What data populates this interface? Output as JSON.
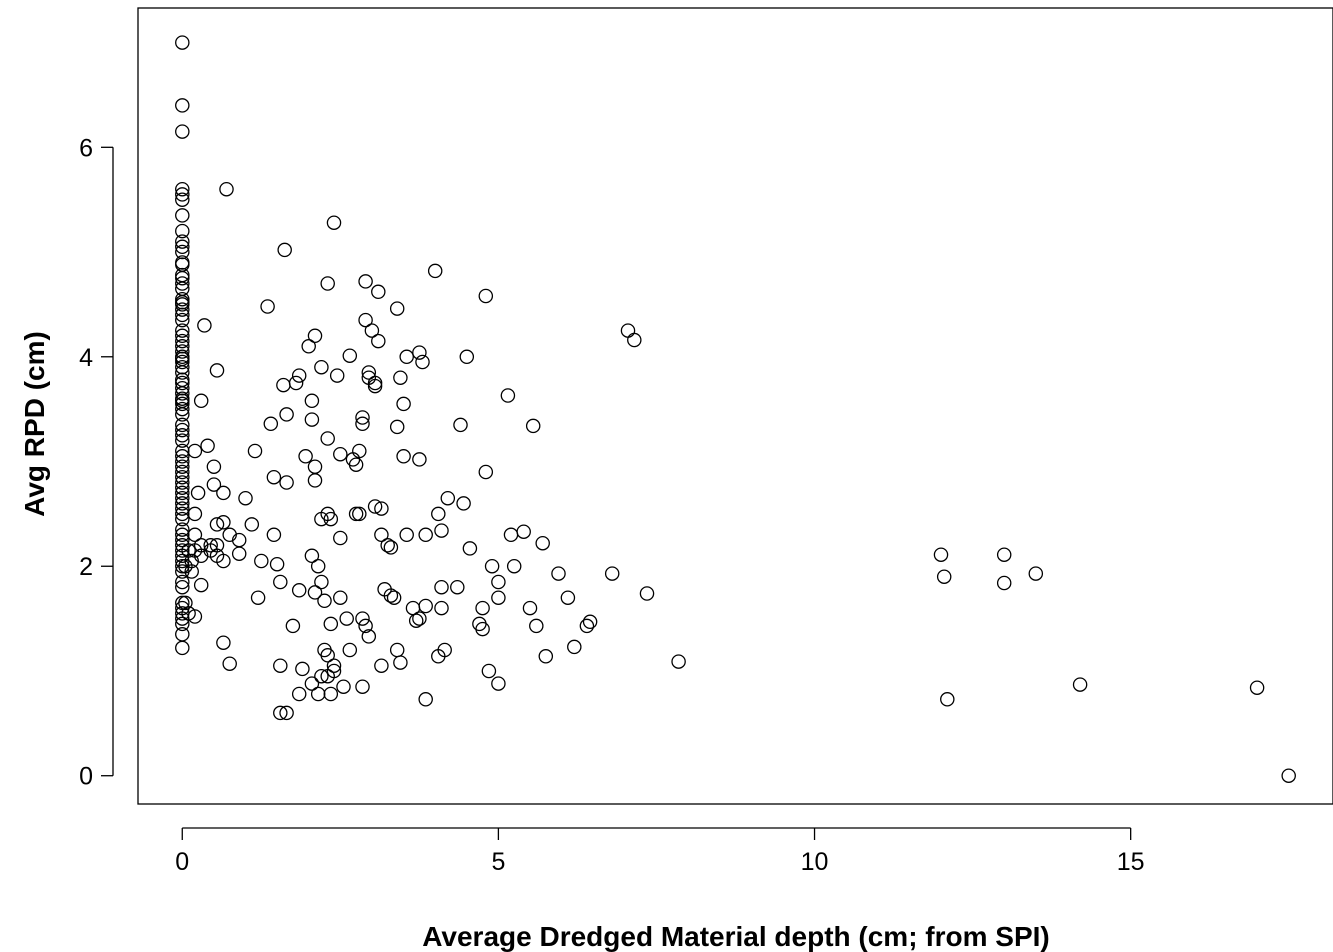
{
  "chart_data": {
    "type": "scatter",
    "title": "",
    "xlabel": "Average Dredged Material depth (cm; from SPI)",
    "ylabel": "Avg RPD (cm)",
    "xlim": [
      -0.7,
      18.2
    ],
    "ylim": [
      -0.27,
      7.33
    ],
    "x_ticks": [
      0,
      5,
      10,
      15
    ],
    "y_ticks": [
      0,
      2,
      4,
      6
    ],
    "x_tick_labels": [
      "0",
      "5",
      "10",
      "15"
    ],
    "y_tick_labels": [
      "0",
      "2",
      "4",
      "6"
    ],
    "grid": false,
    "marker": "open-circle",
    "points": [
      [
        0,
        7.0
      ],
      [
        0,
        6.4
      ],
      [
        0,
        6.15
      ],
      [
        0,
        5.6
      ],
      [
        0,
        5.55
      ],
      [
        0,
        5.5
      ],
      [
        0,
        5.35
      ],
      [
        0,
        5.2
      ],
      [
        0,
        5.1
      ],
      [
        0,
        5.05
      ],
      [
        0,
        5.0
      ],
      [
        0,
        4.9
      ],
      [
        0,
        4.88
      ],
      [
        0,
        4.78
      ],
      [
        0,
        4.75
      ],
      [
        0,
        4.7
      ],
      [
        0,
        4.65
      ],
      [
        0,
        4.55
      ],
      [
        0,
        4.52
      ],
      [
        0,
        4.5
      ],
      [
        0,
        4.45
      ],
      [
        0,
        4.4
      ],
      [
        0,
        4.35
      ],
      [
        0,
        4.25
      ],
      [
        0,
        4.2
      ],
      [
        0,
        4.15
      ],
      [
        0,
        4.1
      ],
      [
        0,
        4.05
      ],
      [
        0,
        4.0
      ],
      [
        0,
        3.98
      ],
      [
        0,
        3.95
      ],
      [
        0,
        3.9
      ],
      [
        0,
        3.85
      ],
      [
        0,
        3.78
      ],
      [
        0,
        3.75
      ],
      [
        0,
        3.7
      ],
      [
        0,
        3.65
      ],
      [
        0,
        3.6
      ],
      [
        0,
        3.58
      ],
      [
        0,
        3.55
      ],
      [
        0,
        3.5
      ],
      [
        0,
        3.45
      ],
      [
        0,
        3.35
      ],
      [
        0,
        3.3
      ],
      [
        0,
        3.25
      ],
      [
        0,
        3.2
      ],
      [
        0,
        3.1
      ],
      [
        0,
        3.05
      ],
      [
        0,
        3.0
      ],
      [
        0,
        2.95
      ],
      [
        0,
        2.9
      ],
      [
        0,
        2.85
      ],
      [
        0,
        2.8
      ],
      [
        0,
        2.75
      ],
      [
        0,
        2.7
      ],
      [
        0,
        2.65
      ],
      [
        0,
        2.6
      ],
      [
        0,
        2.55
      ],
      [
        0,
        2.5
      ],
      [
        0,
        2.45
      ],
      [
        0,
        2.35
      ],
      [
        0,
        2.3
      ],
      [
        0,
        2.25
      ],
      [
        0,
        2.2
      ],
      [
        0,
        2.15
      ],
      [
        0,
        2.1
      ],
      [
        0,
        2.05
      ],
      [
        0,
        2.0
      ],
      [
        0,
        1.95
      ],
      [
        0,
        1.85
      ],
      [
        0,
        1.8
      ],
      [
        0,
        1.65
      ],
      [
        0,
        1.6
      ],
      [
        0,
        1.55
      ],
      [
        0,
        1.5
      ],
      [
        0,
        1.45
      ],
      [
        0,
        1.35
      ],
      [
        0,
        1.22
      ],
      [
        0.7,
        5.6
      ],
      [
        0.35,
        4.3
      ],
      [
        0.55,
        3.87
      ],
      [
        0.3,
        3.58
      ],
      [
        0.4,
        3.15
      ],
      [
        0.2,
        3.1
      ],
      [
        0.5,
        2.95
      ],
      [
        0.5,
        2.78
      ],
      [
        0.25,
        2.7
      ],
      [
        0.65,
        2.7
      ],
      [
        0.2,
        2.5
      ],
      [
        0.55,
        2.4
      ],
      [
        0.65,
        2.42
      ],
      [
        0.75,
        2.3
      ],
      [
        0.9,
        2.25
      ],
      [
        0.2,
        2.3
      ],
      [
        0.3,
        2.2
      ],
      [
        0.45,
        2.2
      ],
      [
        0.55,
        2.2
      ],
      [
        0.1,
        2.15
      ],
      [
        0.2,
        2.15
      ],
      [
        0.3,
        2.1
      ],
      [
        0.45,
        2.15
      ],
      [
        0.55,
        2.1
      ],
      [
        0.65,
        2.05
      ],
      [
        0.15,
        2.05
      ],
      [
        0.05,
        2.0
      ],
      [
        0.15,
        1.95
      ],
      [
        0.3,
        1.82
      ],
      [
        0.05,
        1.65
      ],
      [
        0.1,
        1.55
      ],
      [
        0.2,
        1.52
      ],
      [
        0.65,
        1.27
      ],
      [
        0.75,
        1.07
      ],
      [
        0.9,
        2.12
      ],
      [
        1.0,
        2.65
      ],
      [
        1.1,
        2.4
      ],
      [
        1.15,
        3.1
      ],
      [
        1.25,
        2.05
      ],
      [
        1.2,
        1.7
      ],
      [
        1.35,
        4.48
      ],
      [
        1.4,
        3.36
      ],
      [
        1.45,
        2.85
      ],
      [
        1.45,
        2.3
      ],
      [
        1.5,
        2.02
      ],
      [
        1.55,
        1.85
      ],
      [
        1.55,
        1.05
      ],
      [
        1.6,
        3.73
      ],
      [
        1.65,
        3.45
      ],
      [
        1.65,
        2.8
      ],
      [
        1.62,
        5.02
      ],
      [
        1.8,
        3.75
      ],
      [
        1.85,
        3.82
      ],
      [
        1.95,
        3.05
      ],
      [
        2.0,
        4.1
      ],
      [
        2.05,
        3.4
      ],
      [
        2.05,
        3.58
      ],
      [
        2.1,
        2.82
      ],
      [
        2.1,
        2.95
      ],
      [
        2.1,
        4.2
      ],
      [
        2.15,
        2.0
      ],
      [
        2.2,
        2.45
      ],
      [
        2.2,
        3.9
      ],
      [
        2.05,
        2.1
      ],
      [
        2.1,
        1.75
      ],
      [
        1.85,
        1.77
      ],
      [
        2.2,
        1.85
      ],
      [
        2.25,
        1.67
      ],
      [
        2.3,
        2.5
      ],
      [
        2.35,
        2.45
      ],
      [
        2.3,
        3.22
      ],
      [
        2.3,
        4.7
      ],
      [
        2.4,
        5.28
      ],
      [
        2.45,
        3.82
      ],
      [
        2.5,
        3.07
      ],
      [
        2.5,
        2.27
      ],
      [
        2.5,
        1.7
      ],
      [
        2.65,
        4.01
      ],
      [
        2.7,
        3.02
      ],
      [
        2.75,
        2.97
      ],
      [
        2.75,
        2.5
      ],
      [
        2.8,
        2.5
      ],
      [
        2.8,
        3.1
      ],
      [
        2.85,
        3.42
      ],
      [
        2.85,
        3.36
      ],
      [
        2.85,
        1.5
      ],
      [
        2.9,
        4.35
      ],
      [
        2.9,
        4.72
      ],
      [
        2.95,
        3.85
      ],
      [
        2.95,
        3.8
      ],
      [
        3.0,
        4.25
      ],
      [
        3.05,
        3.72
      ],
      [
        3.05,
        3.75
      ],
      [
        3.05,
        2.57
      ],
      [
        3.1,
        4.15
      ],
      [
        3.1,
        4.62
      ],
      [
        3.15,
        2.55
      ],
      [
        3.15,
        2.3
      ],
      [
        3.25,
        2.2
      ],
      [
        3.3,
        2.18
      ],
      [
        3.2,
        1.78
      ],
      [
        3.3,
        1.72
      ],
      [
        3.35,
        1.7
      ],
      [
        3.4,
        3.33
      ],
      [
        3.4,
        4.46
      ],
      [
        3.45,
        3.8
      ],
      [
        3.5,
        3.55
      ],
      [
        3.5,
        3.05
      ],
      [
        3.55,
        4.0
      ],
      [
        3.55,
        2.3
      ],
      [
        3.65,
        1.6
      ],
      [
        3.7,
        1.48
      ],
      [
        3.75,
        1.5
      ],
      [
        3.75,
        3.02
      ],
      [
        3.75,
        4.04
      ],
      [
        3.8,
        3.95
      ],
      [
        3.85,
        2.3
      ],
      [
        3.85,
        1.62
      ],
      [
        3.4,
        1.2
      ],
      [
        3.45,
        1.08
      ],
      [
        3.15,
        1.05
      ],
      [
        2.95,
        1.33
      ],
      [
        2.9,
        1.43
      ],
      [
        2.65,
        1.2
      ],
      [
        2.6,
        1.5
      ],
      [
        2.4,
        1.05
      ],
      [
        2.35,
        1.45
      ],
      [
        2.3,
        1.15
      ],
      [
        2.25,
        1.2
      ],
      [
        2.3,
        0.95
      ],
      [
        2.35,
        0.78
      ],
      [
        2.2,
        0.95
      ],
      [
        2.15,
        0.78
      ],
      [
        2.05,
        0.88
      ],
      [
        1.85,
        0.78
      ],
      [
        1.9,
        1.02
      ],
      [
        1.75,
        1.43
      ],
      [
        1.55,
        0.6
      ],
      [
        1.65,
        0.6
      ],
      [
        2.4,
        1.0
      ],
      [
        2.55,
        0.85
      ],
      [
        2.85,
        0.85
      ],
      [
        3.85,
        0.73
      ],
      [
        4.0,
        4.82
      ],
      [
        4.05,
        2.5
      ],
      [
        4.1,
        2.34
      ],
      [
        4.1,
        1.8
      ],
      [
        4.1,
        1.6
      ],
      [
        4.05,
        1.14
      ],
      [
        4.15,
        1.2
      ],
      [
        4.2,
        2.65
      ],
      [
        4.35,
        1.8
      ],
      [
        4.4,
        3.35
      ],
      [
        4.45,
        2.6
      ],
      [
        4.5,
        4.0
      ],
      [
        4.55,
        2.17
      ],
      [
        4.7,
        1.45
      ],
      [
        4.75,
        1.4
      ],
      [
        4.75,
        1.6
      ],
      [
        4.8,
        4.58
      ],
      [
        4.8,
        2.9
      ],
      [
        4.85,
        1.0
      ],
      [
        4.9,
        2.0
      ],
      [
        5.0,
        1.7
      ],
      [
        5.0,
        1.85
      ],
      [
        5.0,
        0.88
      ],
      [
        5.15,
        3.63
      ],
      [
        5.2,
        2.3
      ],
      [
        5.25,
        2.0
      ],
      [
        5.4,
        2.33
      ],
      [
        5.5,
        1.6
      ],
      [
        5.55,
        3.34
      ],
      [
        5.6,
        1.43
      ],
      [
        5.7,
        2.22
      ],
      [
        5.75,
        1.14
      ],
      [
        5.95,
        1.93
      ],
      [
        6.1,
        1.7
      ],
      [
        6.2,
        1.23
      ],
      [
        6.4,
        1.43
      ],
      [
        6.45,
        1.47
      ],
      [
        6.8,
        1.93
      ],
      [
        7.05,
        4.25
      ],
      [
        7.15,
        4.16
      ],
      [
        7.35,
        1.74
      ],
      [
        7.85,
        1.09
      ],
      [
        12.0,
        2.11
      ],
      [
        12.05,
        1.9
      ],
      [
        12.1,
        0.73
      ],
      [
        13.0,
        2.11
      ],
      [
        13.0,
        1.84
      ],
      [
        13.5,
        1.93
      ],
      [
        14.2,
        0.87
      ],
      [
        17.0,
        0.84
      ],
      [
        17.5,
        0.0
      ]
    ]
  }
}
